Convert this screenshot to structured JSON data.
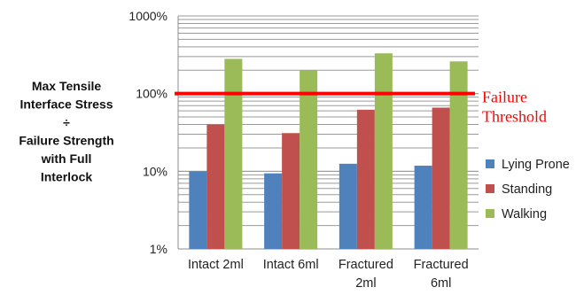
{
  "chart_data": {
    "type": "bar",
    "y_scale": "log",
    "ylim": [
      1,
      1000
    ],
    "y_ticks": [
      "1%",
      "10%",
      "100%",
      "1000%"
    ],
    "ylabel_lines": [
      "Max Tensile",
      "Interface Stress",
      "÷",
      "Failure Strength",
      "with Full",
      "Interlock"
    ],
    "categories": [
      [
        "Intact 2ml"
      ],
      [
        "Intact 6ml"
      ],
      [
        "Fractured",
        "2ml"
      ],
      [
        "Fractured",
        "6ml"
      ]
    ],
    "series": [
      {
        "name": "Lying Prone",
        "color": "#4f81bd",
        "values": [
          10,
          9.4,
          12.5,
          11.8
        ]
      },
      {
        "name": "Standing",
        "color": "#c0504d",
        "values": [
          40,
          31,
          62,
          66
        ]
      },
      {
        "name": "Walking",
        "color": "#9bbb59",
        "values": [
          280,
          200,
          330,
          260
        ]
      }
    ],
    "threshold": {
      "value": 100,
      "color": "#ff0000",
      "label_lines": [
        "Failure",
        "Threshold"
      ]
    },
    "grid": true,
    "legend_position": "right"
  }
}
